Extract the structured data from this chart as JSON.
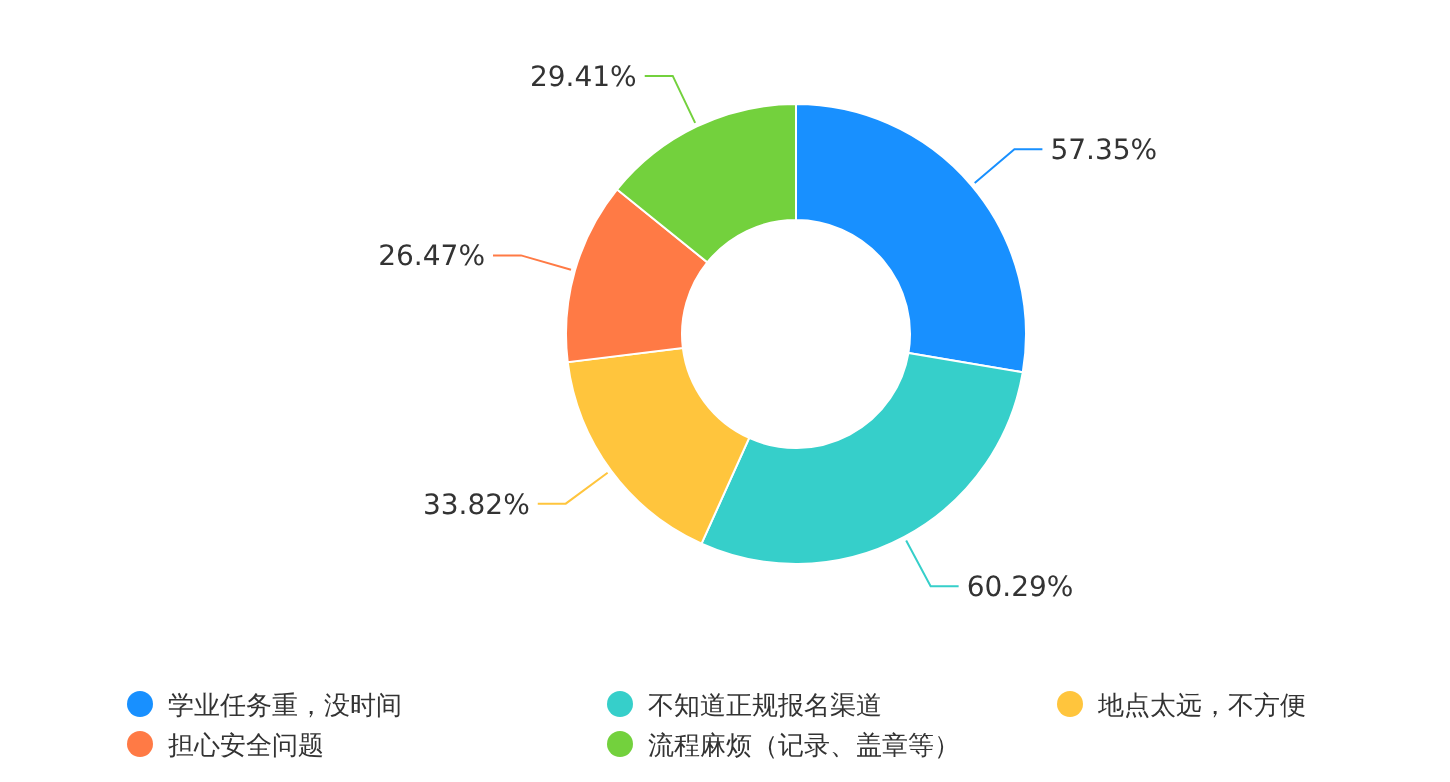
{
  "chart_data": {
    "type": "donut",
    "categories": [
      "学业任务重，没时间",
      "不知道正规报名渠道",
      "地点太远，不方便",
      "担心安全问题",
      "流程麻烦（记录、盖章等）"
    ],
    "values": [
      57.35,
      60.29,
      33.82,
      26.47,
      29.41
    ],
    "colors": [
      "#1890ff",
      "#36cfca",
      "#ffc53d",
      "#ff7a45",
      "#73d13d"
    ],
    "value_labels": [
      "57.35%",
      "60.29%",
      "33.82%",
      "26.47%",
      "29.41%"
    ],
    "legend": "bottom"
  }
}
